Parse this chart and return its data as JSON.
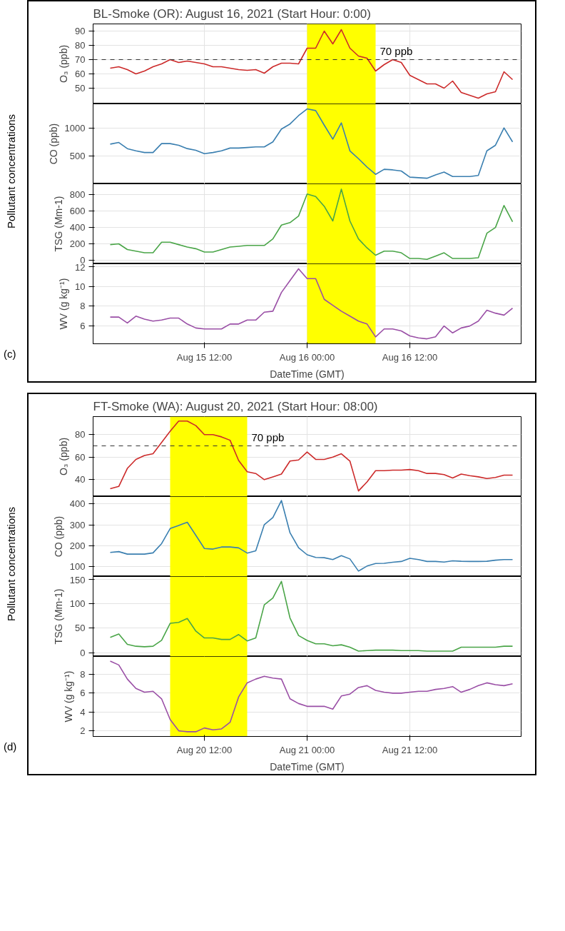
{
  "chart_data": [
    {
      "type": "line",
      "title": "BL-Smoke (OR): August 16, 2021 (Start Hour: 0:00)",
      "annotations": [
        "Pollutant concentrations",
        "(c)"
      ],
      "ylabel": "O₃ (ppb)",
      "x": [
        "2021-08-15T01:00",
        "2021-08-15T02:00",
        "2021-08-15T03:00",
        "2021-08-15T04:00",
        "2021-08-15T05:00",
        "2021-08-15T06:00",
        "2021-08-15T07:00",
        "2021-08-15T08:00",
        "2021-08-15T09:00",
        "2021-08-15T10:00",
        "2021-08-15T11:00",
        "2021-08-15T12:00",
        "2021-08-15T13:00",
        "2021-08-15T14:00",
        "2021-08-15T15:00",
        "2021-08-15T16:00",
        "2021-08-15T17:00",
        "2021-08-15T18:00",
        "2021-08-15T19:00",
        "2021-08-15T20:00",
        "2021-08-15T21:00",
        "2021-08-15T22:00",
        "2021-08-15T23:00",
        "2021-08-16T00:00",
        "2021-08-16T01:00",
        "2021-08-16T02:00",
        "2021-08-16T03:00",
        "2021-08-16T04:00",
        "2021-08-16T05:00",
        "2021-08-16T06:00",
        "2021-08-16T07:00",
        "2021-08-16T08:00",
        "2021-08-16T09:00",
        "2021-08-16T10:00",
        "2021-08-16T11:00",
        "2021-08-16T12:00",
        "2021-08-16T13:00",
        "2021-08-16T14:00",
        "2021-08-16T15:00",
        "2021-08-16T16:00",
        "2021-08-16T17:00",
        "2021-08-16T18:00",
        "2021-08-16T19:00",
        "2021-08-16T20:00",
        "2021-08-16T21:00",
        "2021-08-16T22:00",
        "2021-08-16T23:00",
        "2021-08-17T00:00"
      ],
      "series": [
        {
          "color": "#cc2a2a",
          "values": [
            64,
            65,
            63,
            60,
            62,
            65,
            67,
            70,
            68,
            69,
            68,
            67,
            65,
            65,
            64,
            63,
            62.5,
            63,
            60.5,
            65,
            67.5,
            67.5,
            67,
            78,
            78,
            90,
            81,
            91,
            78,
            72.5,
            71,
            62,
            66.5,
            70,
            68,
            59,
            56,
            53,
            53,
            50,
            55,
            47,
            45,
            43,
            46,
            47.5,
            61.5,
            56
          ]
        }
      ],
      "xlim": [
        "2021-08-14T23:00",
        "2021-08-17T01:00"
      ],
      "ylim": [
        39,
        95
      ],
      "xticks": [
        {
          "value": "2021-08-15T12:00",
          "label": null
        },
        {
          "value": "2021-08-16T00:00",
          "label": null
        },
        {
          "value": "2021-08-16T12:00",
          "label": null
        }
      ],
      "yticks": [
        50,
        60,
        70,
        80,
        90
      ],
      "grid": true,
      "tick_labels": "y",
      "bands": [
        {
          "axis": "x",
          "from": "2021-08-16T00:00",
          "to": "2021-08-16T08:00",
          "color": "#ffff00"
        }
      ],
      "ref_lines": [
        {
          "axis": "y",
          "value": 70,
          "label": "70 ppb",
          "color": "#333333",
          "line_style": "dashed"
        }
      ]
    },
    {
      "type": "line",
      "ylabel": "CO (ppb)",
      "x": [
        "2021-08-15T01:00",
        "2021-08-15T02:00",
        "2021-08-15T03:00",
        "2021-08-15T04:00",
        "2021-08-15T05:00",
        "2021-08-15T06:00",
        "2021-08-15T07:00",
        "2021-08-15T08:00",
        "2021-08-15T09:00",
        "2021-08-15T10:00",
        "2021-08-15T11:00",
        "2021-08-15T12:00",
        "2021-08-15T13:00",
        "2021-08-15T14:00",
        "2021-08-15T15:00",
        "2021-08-15T16:00",
        "2021-08-15T17:00",
        "2021-08-15T18:00",
        "2021-08-15T19:00",
        "2021-08-15T20:00",
        "2021-08-15T21:00",
        "2021-08-15T22:00",
        "2021-08-15T23:00",
        "2021-08-16T00:00",
        "2021-08-16T01:00",
        "2021-08-16T02:00",
        "2021-08-16T03:00",
        "2021-08-16T04:00",
        "2021-08-16T05:00",
        "2021-08-16T06:00",
        "2021-08-16T07:00",
        "2021-08-16T08:00",
        "2021-08-16T09:00",
        "2021-08-16T10:00",
        "2021-08-16T11:00",
        "2021-08-16T12:00",
        "2021-08-16T13:00",
        "2021-08-16T14:00",
        "2021-08-16T15:00",
        "2021-08-16T16:00",
        "2021-08-16T17:00",
        "2021-08-16T18:00",
        "2021-08-16T19:00",
        "2021-08-16T20:00",
        "2021-08-16T21:00",
        "2021-08-16T22:00",
        "2021-08-16T23:00",
        "2021-08-17T00:00"
      ],
      "series": [
        {
          "color": "#3a7fb0",
          "values": [
            710,
            740,
            630,
            590,
            560,
            560,
            720,
            720,
            690,
            630,
            600,
            540,
            560,
            590,
            640,
            640,
            650,
            660,
            660,
            750,
            980,
            1070,
            1220,
            1340,
            1310,
            1050,
            800,
            1090,
            590,
            450,
            300,
            170,
            260,
            250,
            230,
            120,
            110,
            100,
            160,
            210,
            130,
            130,
            130,
            150,
            590,
            690,
            1000,
            750
          ]
        }
      ],
      "xlim": [
        "2021-08-14T23:00",
        "2021-08-17T01:00"
      ],
      "ylim": [
        0,
        1430
      ],
      "xticks": [
        {
          "value": "2021-08-15T12:00",
          "label": null
        },
        {
          "value": "2021-08-16T00:00",
          "label": null
        },
        {
          "value": "2021-08-16T12:00",
          "label": null
        }
      ],
      "yticks": [
        500,
        1000
      ],
      "grid": true,
      "tick_labels": "y",
      "bands": [
        {
          "axis": "x",
          "from": "2021-08-16T00:00",
          "to": "2021-08-16T08:00",
          "color": "#ffff00"
        }
      ]
    },
    {
      "type": "line",
      "ylabel": "TSG (Mm-1)",
      "x": [
        "2021-08-15T01:00",
        "2021-08-15T02:00",
        "2021-08-15T03:00",
        "2021-08-15T04:00",
        "2021-08-15T05:00",
        "2021-08-15T06:00",
        "2021-08-15T07:00",
        "2021-08-15T08:00",
        "2021-08-15T09:00",
        "2021-08-15T10:00",
        "2021-08-15T11:00",
        "2021-08-15T12:00",
        "2021-08-15T13:00",
        "2021-08-15T14:00",
        "2021-08-15T15:00",
        "2021-08-15T16:00",
        "2021-08-15T17:00",
        "2021-08-15T18:00",
        "2021-08-15T19:00",
        "2021-08-15T20:00",
        "2021-08-15T21:00",
        "2021-08-15T22:00",
        "2021-08-15T23:00",
        "2021-08-16T00:00",
        "2021-08-16T01:00",
        "2021-08-16T02:00",
        "2021-08-16T03:00",
        "2021-08-16T04:00",
        "2021-08-16T05:00",
        "2021-08-16T06:00",
        "2021-08-16T07:00",
        "2021-08-16T08:00",
        "2021-08-16T09:00",
        "2021-08-16T10:00",
        "2021-08-16T11:00",
        "2021-08-16T12:00",
        "2021-08-16T13:00",
        "2021-08-16T14:00",
        "2021-08-16T15:00",
        "2021-08-16T16:00",
        "2021-08-16T17:00",
        "2021-08-16T18:00",
        "2021-08-16T19:00",
        "2021-08-16T20:00",
        "2021-08-16T21:00",
        "2021-08-16T22:00",
        "2021-08-16T23:00",
        "2021-08-17T00:00"
      ],
      "series": [
        {
          "color": "#4aa548",
          "values": [
            190,
            200,
            130,
            110,
            90,
            90,
            220,
            220,
            190,
            160,
            140,
            100,
            100,
            130,
            160,
            170,
            180,
            180,
            180,
            260,
            430,
            460,
            540,
            810,
            780,
            660,
            480,
            870,
            480,
            260,
            150,
            60,
            110,
            110,
            90,
            20,
            20,
            10,
            50,
            90,
            20,
            20,
            20,
            30,
            330,
            400,
            670,
            470
          ]
        }
      ],
      "xlim": [
        "2021-08-14T23:00",
        "2021-08-17T01:00"
      ],
      "ylim": [
        -45,
        935
      ],
      "xticks": [
        {
          "value": "2021-08-15T12:00",
          "label": null
        },
        {
          "value": "2021-08-16T00:00",
          "label": null
        },
        {
          "value": "2021-08-16T12:00",
          "label": null
        }
      ],
      "yticks": [
        0,
        200,
        400,
        600,
        800
      ],
      "grid": true,
      "tick_labels": "y",
      "bands": [
        {
          "axis": "x",
          "from": "2021-08-16T00:00",
          "to": "2021-08-16T08:00",
          "color": "#ffff00"
        }
      ]
    },
    {
      "type": "line",
      "ylabel": "WV (g kg⁻¹)",
      "xlabel": "DateTime (GMT)",
      "x": [
        "2021-08-15T01:00",
        "2021-08-15T02:00",
        "2021-08-15T03:00",
        "2021-08-15T04:00",
        "2021-08-15T05:00",
        "2021-08-15T06:00",
        "2021-08-15T07:00",
        "2021-08-15T08:00",
        "2021-08-15T09:00",
        "2021-08-15T10:00",
        "2021-08-15T11:00",
        "2021-08-15T12:00",
        "2021-08-15T13:00",
        "2021-08-15T14:00",
        "2021-08-15T15:00",
        "2021-08-15T16:00",
        "2021-08-15T17:00",
        "2021-08-15T18:00",
        "2021-08-15T19:00",
        "2021-08-15T20:00",
        "2021-08-15T21:00",
        "2021-08-15T22:00",
        "2021-08-15T23:00",
        "2021-08-16T00:00",
        "2021-08-16T01:00",
        "2021-08-16T02:00",
        "2021-08-16T03:00",
        "2021-08-16T04:00",
        "2021-08-16T05:00",
        "2021-08-16T06:00",
        "2021-08-16T07:00",
        "2021-08-16T08:00",
        "2021-08-16T09:00",
        "2021-08-16T10:00",
        "2021-08-16T11:00",
        "2021-08-16T12:00",
        "2021-08-16T13:00",
        "2021-08-16T14:00",
        "2021-08-16T15:00",
        "2021-08-16T16:00",
        "2021-08-16T17:00",
        "2021-08-16T18:00",
        "2021-08-16T19:00",
        "2021-08-16T20:00",
        "2021-08-16T21:00",
        "2021-08-16T22:00",
        "2021-08-16T23:00",
        "2021-08-17T00:00"
      ],
      "series": [
        {
          "color": "#9a4fa6",
          "values": [
            6.9,
            6.9,
            6.3,
            7.0,
            6.7,
            6.5,
            6.6,
            6.8,
            6.8,
            6.2,
            5.8,
            5.7,
            5.7,
            5.7,
            6.2,
            6.2,
            6.6,
            6.6,
            7.4,
            7.5,
            9.4,
            10.6,
            11.8,
            10.8,
            10.8,
            8.7,
            8.1,
            7.5,
            7.0,
            6.5,
            6.2,
            4.9,
            5.7,
            5.7,
            5.5,
            5.0,
            4.8,
            4.7,
            4.9,
            6.0,
            5.3,
            5.8,
            6.0,
            6.5,
            7.6,
            7.3,
            7.1,
            7.8
          ]
        }
      ],
      "xlim": [
        "2021-08-14T23:00",
        "2021-08-17T01:00"
      ],
      "ylim": [
        4.2,
        12.3
      ],
      "xticks": [
        {
          "value": "2021-08-15T12:00",
          "label": "Aug 15 12:00"
        },
        {
          "value": "2021-08-16T00:00",
          "label": "Aug 16 00:00"
        },
        {
          "value": "2021-08-16T12:00",
          "label": "Aug 16 12:00"
        }
      ],
      "yticks": [
        6,
        8,
        10,
        12
      ],
      "grid": true,
      "bands": [
        {
          "axis": "x",
          "from": "2021-08-16T00:00",
          "to": "2021-08-16T08:00",
          "color": "#ffff00"
        }
      ]
    },
    {
      "type": "line",
      "title": "FT-Smoke (WA): August 20, 2021 (Start Hour: 08:00)",
      "annotations": [
        "Pollutant concentrations",
        "(d)"
      ],
      "ylabel": "O₃ (ppb)",
      "x": [
        "2021-08-20T01:00",
        "2021-08-20T02:00",
        "2021-08-20T03:00",
        "2021-08-20T04:00",
        "2021-08-20T05:00",
        "2021-08-20T06:00",
        "2021-08-20T07:00",
        "2021-08-20T08:00",
        "2021-08-20T09:00",
        "2021-08-20T10:00",
        "2021-08-20T11:00",
        "2021-08-20T12:00",
        "2021-08-20T13:00",
        "2021-08-20T14:00",
        "2021-08-20T15:00",
        "2021-08-20T16:00",
        "2021-08-20T17:00",
        "2021-08-20T18:00",
        "2021-08-20T19:00",
        "2021-08-20T20:00",
        "2021-08-20T21:00",
        "2021-08-20T22:00",
        "2021-08-20T23:00",
        "2021-08-21T00:00",
        "2021-08-21T01:00",
        "2021-08-21T02:00",
        "2021-08-21T03:00",
        "2021-08-21T04:00",
        "2021-08-21T05:00",
        "2021-08-21T06:00",
        "2021-08-21T07:00",
        "2021-08-21T08:00",
        "2021-08-21T09:00",
        "2021-08-21T10:00",
        "2021-08-21T11:00",
        "2021-08-21T12:00",
        "2021-08-21T13:00",
        "2021-08-21T14:00",
        "2021-08-21T15:00",
        "2021-08-21T16:00",
        "2021-08-21T17:00",
        "2021-08-21T18:00",
        "2021-08-21T19:00",
        "2021-08-21T20:00",
        "2021-08-21T21:00",
        "2021-08-21T22:00",
        "2021-08-21T23:00",
        "2021-08-22T00:00"
      ],
      "series": [
        {
          "color": "#cc2a2a",
          "values": [
            32,
            34,
            50,
            58,
            61.5,
            63,
            73,
            83,
            92,
            92,
            88,
            80,
            80,
            78,
            75,
            57,
            47,
            45.5,
            40,
            42.5,
            45,
            56.5,
            57.5,
            64.5,
            58,
            58,
            60,
            63,
            56.5,
            30,
            38,
            48,
            48,
            48.5,
            48.5,
            49,
            48,
            45.5,
            45.5,
            44.5,
            41.5,
            45,
            43.5,
            42.5,
            41,
            42,
            44,
            44
          ]
        }
      ],
      "xlim": [
        "2021-08-19T23:00",
        "2021-08-22T01:00"
      ],
      "ylim": [
        25,
        96
      ],
      "xticks": [
        {
          "value": "2021-08-20T12:00",
          "label": null
        },
        {
          "value": "2021-08-21T00:00",
          "label": null
        },
        {
          "value": "2021-08-21T12:00",
          "label": null
        }
      ],
      "yticks": [
        40,
        60,
        80
      ],
      "grid": true,
      "tick_labels": "y",
      "bands": [
        {
          "axis": "x",
          "from": "2021-08-20T08:00",
          "to": "2021-08-20T17:00",
          "color": "#ffff00"
        }
      ],
      "ref_lines": [
        {
          "axis": "y",
          "value": 70,
          "label": "70 ppb",
          "color": "#333333",
          "line_style": "dashed"
        }
      ]
    },
    {
      "type": "line",
      "ylabel": "CO (ppb)",
      "x": [
        "2021-08-20T01:00",
        "2021-08-20T02:00",
        "2021-08-20T03:00",
        "2021-08-20T04:00",
        "2021-08-20T05:00",
        "2021-08-20T06:00",
        "2021-08-20T07:00",
        "2021-08-20T08:00",
        "2021-08-20T09:00",
        "2021-08-20T10:00",
        "2021-08-20T11:00",
        "2021-08-20T12:00",
        "2021-08-20T13:00",
        "2021-08-20T14:00",
        "2021-08-20T15:00",
        "2021-08-20T16:00",
        "2021-08-20T17:00",
        "2021-08-20T18:00",
        "2021-08-20T19:00",
        "2021-08-20T20:00",
        "2021-08-20T21:00",
        "2021-08-20T22:00",
        "2021-08-20T23:00",
        "2021-08-21T00:00",
        "2021-08-21T01:00",
        "2021-08-21T02:00",
        "2021-08-21T03:00",
        "2021-08-21T04:00",
        "2021-08-21T05:00",
        "2021-08-21T06:00",
        "2021-08-21T07:00",
        "2021-08-21T08:00",
        "2021-08-21T09:00",
        "2021-08-21T10:00",
        "2021-08-21T11:00",
        "2021-08-21T12:00",
        "2021-08-21T13:00",
        "2021-08-21T14:00",
        "2021-08-21T15:00",
        "2021-08-21T16:00",
        "2021-08-21T17:00",
        "2021-08-21T18:00",
        "2021-08-21T19:00",
        "2021-08-21T20:00",
        "2021-08-21T21:00",
        "2021-08-21T22:00",
        "2021-08-21T23:00",
        "2021-08-22T00:00"
      ],
      "series": [
        {
          "color": "#3a7fb0",
          "values": [
            168,
            172,
            160,
            160,
            160,
            166,
            210,
            282,
            297,
            312,
            250,
            187,
            184,
            194,
            194,
            190,
            165,
            176,
            301,
            335,
            416,
            262,
            191,
            157,
            144,
            143,
            134,
            153,
            137,
            79,
            103,
            115,
            116,
            121,
            125,
            140,
            134,
            125,
            125,
            122,
            128,
            126,
            125,
            125,
            126,
            131,
            134,
            134
          ]
        }
      ],
      "xlim": [
        "2021-08-19T23:00",
        "2021-08-22T01:00"
      ],
      "ylim": [
        53,
        435
      ],
      "xticks": [
        {
          "value": "2021-08-20T12:00",
          "label": null
        },
        {
          "value": "2021-08-21T00:00",
          "label": null
        },
        {
          "value": "2021-08-21T12:00",
          "label": null
        }
      ],
      "yticks": [
        100,
        200,
        300,
        400
      ],
      "grid": true,
      "tick_labels": "y",
      "bands": [
        {
          "axis": "x",
          "from": "2021-08-20T08:00",
          "to": "2021-08-20T17:00",
          "color": "#ffff00"
        }
      ]
    },
    {
      "type": "line",
      "ylabel": "TSG (Mm-1)",
      "x": [
        "2021-08-20T01:00",
        "2021-08-20T02:00",
        "2021-08-20T03:00",
        "2021-08-20T04:00",
        "2021-08-20T05:00",
        "2021-08-20T06:00",
        "2021-08-20T07:00",
        "2021-08-20T08:00",
        "2021-08-20T09:00",
        "2021-08-20T10:00",
        "2021-08-20T11:00",
        "2021-08-20T12:00",
        "2021-08-20T13:00",
        "2021-08-20T14:00",
        "2021-08-20T15:00",
        "2021-08-20T16:00",
        "2021-08-20T17:00",
        "2021-08-20T18:00",
        "2021-08-20T19:00",
        "2021-08-20T20:00",
        "2021-08-20T21:00",
        "2021-08-20T22:00",
        "2021-08-20T23:00",
        "2021-08-21T00:00",
        "2021-08-21T01:00",
        "2021-08-21T02:00",
        "2021-08-21T03:00",
        "2021-08-21T04:00",
        "2021-08-21T05:00",
        "2021-08-21T06:00",
        "2021-08-21T07:00",
        "2021-08-21T08:00",
        "2021-08-21T09:00",
        "2021-08-21T10:00",
        "2021-08-21T11:00",
        "2021-08-21T12:00",
        "2021-08-21T13:00",
        "2021-08-21T14:00",
        "2021-08-21T15:00",
        "2021-08-21T16:00",
        "2021-08-21T17:00",
        "2021-08-21T18:00",
        "2021-08-21T19:00",
        "2021-08-21T20:00",
        "2021-08-21T21:00",
        "2021-08-21T22:00",
        "2021-08-21T23:00",
        "2021-08-22T00:00"
      ],
      "series": [
        {
          "color": "#4aa548",
          "values": [
            31,
            38,
            17,
            13,
            12,
            13,
            25,
            60,
            62,
            70,
            44,
            30,
            30,
            27,
            27,
            37,
            24,
            30,
            98,
            112,
            146,
            71,
            35,
            25,
            18,
            18,
            14,
            16,
            11,
            3,
            4,
            5,
            5,
            5,
            4,
            4,
            4,
            3,
            3,
            3,
            3,
            11,
            11,
            11,
            11,
            11,
            13,
            13
          ]
        }
      ],
      "xlim": [
        "2021-08-19T23:00",
        "2021-08-22T01:00"
      ],
      "ylim": [
        -8,
        156
      ],
      "xticks": [
        {
          "value": "2021-08-20T12:00",
          "label": null
        },
        {
          "value": "2021-08-21T00:00",
          "label": null
        },
        {
          "value": "2021-08-21T12:00",
          "label": null
        }
      ],
      "yticks": [
        0,
        50,
        100,
        150
      ],
      "grid": true,
      "tick_labels": "y",
      "bands": [
        {
          "axis": "x",
          "from": "2021-08-20T08:00",
          "to": "2021-08-20T17:00",
          "color": "#ffff00"
        }
      ]
    },
    {
      "type": "line",
      "ylabel": "WV (g kg⁻¹)",
      "xlabel": "DateTime (GMT)",
      "x": [
        "2021-08-20T01:00",
        "2021-08-20T02:00",
        "2021-08-20T03:00",
        "2021-08-20T04:00",
        "2021-08-20T05:00",
        "2021-08-20T06:00",
        "2021-08-20T07:00",
        "2021-08-20T08:00",
        "2021-08-20T09:00",
        "2021-08-20T10:00",
        "2021-08-20T11:00",
        "2021-08-20T12:00",
        "2021-08-20T13:00",
        "2021-08-20T14:00",
        "2021-08-20T15:00",
        "2021-08-20T16:00",
        "2021-08-20T17:00",
        "2021-08-20T18:00",
        "2021-08-20T19:00",
        "2021-08-20T20:00",
        "2021-08-20T21:00",
        "2021-08-20T22:00",
        "2021-08-20T23:00",
        "2021-08-21T00:00",
        "2021-08-21T01:00",
        "2021-08-21T02:00",
        "2021-08-21T03:00",
        "2021-08-21T04:00",
        "2021-08-21T05:00",
        "2021-08-21T06:00",
        "2021-08-21T07:00",
        "2021-08-21T08:00",
        "2021-08-21T09:00",
        "2021-08-21T10:00",
        "2021-08-21T11:00",
        "2021-08-21T12:00",
        "2021-08-21T13:00",
        "2021-08-21T14:00",
        "2021-08-21T15:00",
        "2021-08-21T16:00",
        "2021-08-21T17:00",
        "2021-08-21T18:00",
        "2021-08-21T19:00",
        "2021-08-21T20:00",
        "2021-08-21T21:00",
        "2021-08-21T22:00",
        "2021-08-21T23:00",
        "2021-08-22T00:00"
      ],
      "series": [
        {
          "color": "#9a4fa6",
          "values": [
            9.4,
            9.0,
            7.5,
            6.5,
            6.1,
            6.2,
            5.4,
            3.2,
            2.0,
            1.9,
            1.9,
            2.3,
            2.1,
            2.2,
            2.9,
            5.6,
            7.1,
            7.5,
            7.8,
            7.6,
            7.5,
            5.4,
            4.9,
            4.6,
            4.6,
            4.6,
            4.3,
            5.7,
            5.9,
            6.6,
            6.8,
            6.3,
            6.1,
            6.0,
            6.0,
            6.1,
            6.2,
            6.2,
            6.4,
            6.5,
            6.7,
            6.1,
            6.4,
            6.8,
            7.1,
            6.9,
            6.8,
            7.0
          ]
        }
      ],
      "xlim": [
        "2021-08-19T23:00",
        "2021-08-22T01:00"
      ],
      "ylim": [
        1.4,
        9.9
      ],
      "xticks": [
        {
          "value": "2021-08-20T12:00",
          "label": "Aug 20 12:00"
        },
        {
          "value": "2021-08-21T00:00",
          "label": "Aug 21 00:00"
        },
        {
          "value": "2021-08-21T12:00",
          "label": "Aug 21 12:00"
        }
      ],
      "yticks": [
        2,
        4,
        6,
        8
      ],
      "grid": true,
      "bands": [
        {
          "axis": "x",
          "from": "2021-08-20T08:00",
          "to": "2021-08-20T17:00",
          "color": "#ffff00"
        }
      ]
    }
  ]
}
